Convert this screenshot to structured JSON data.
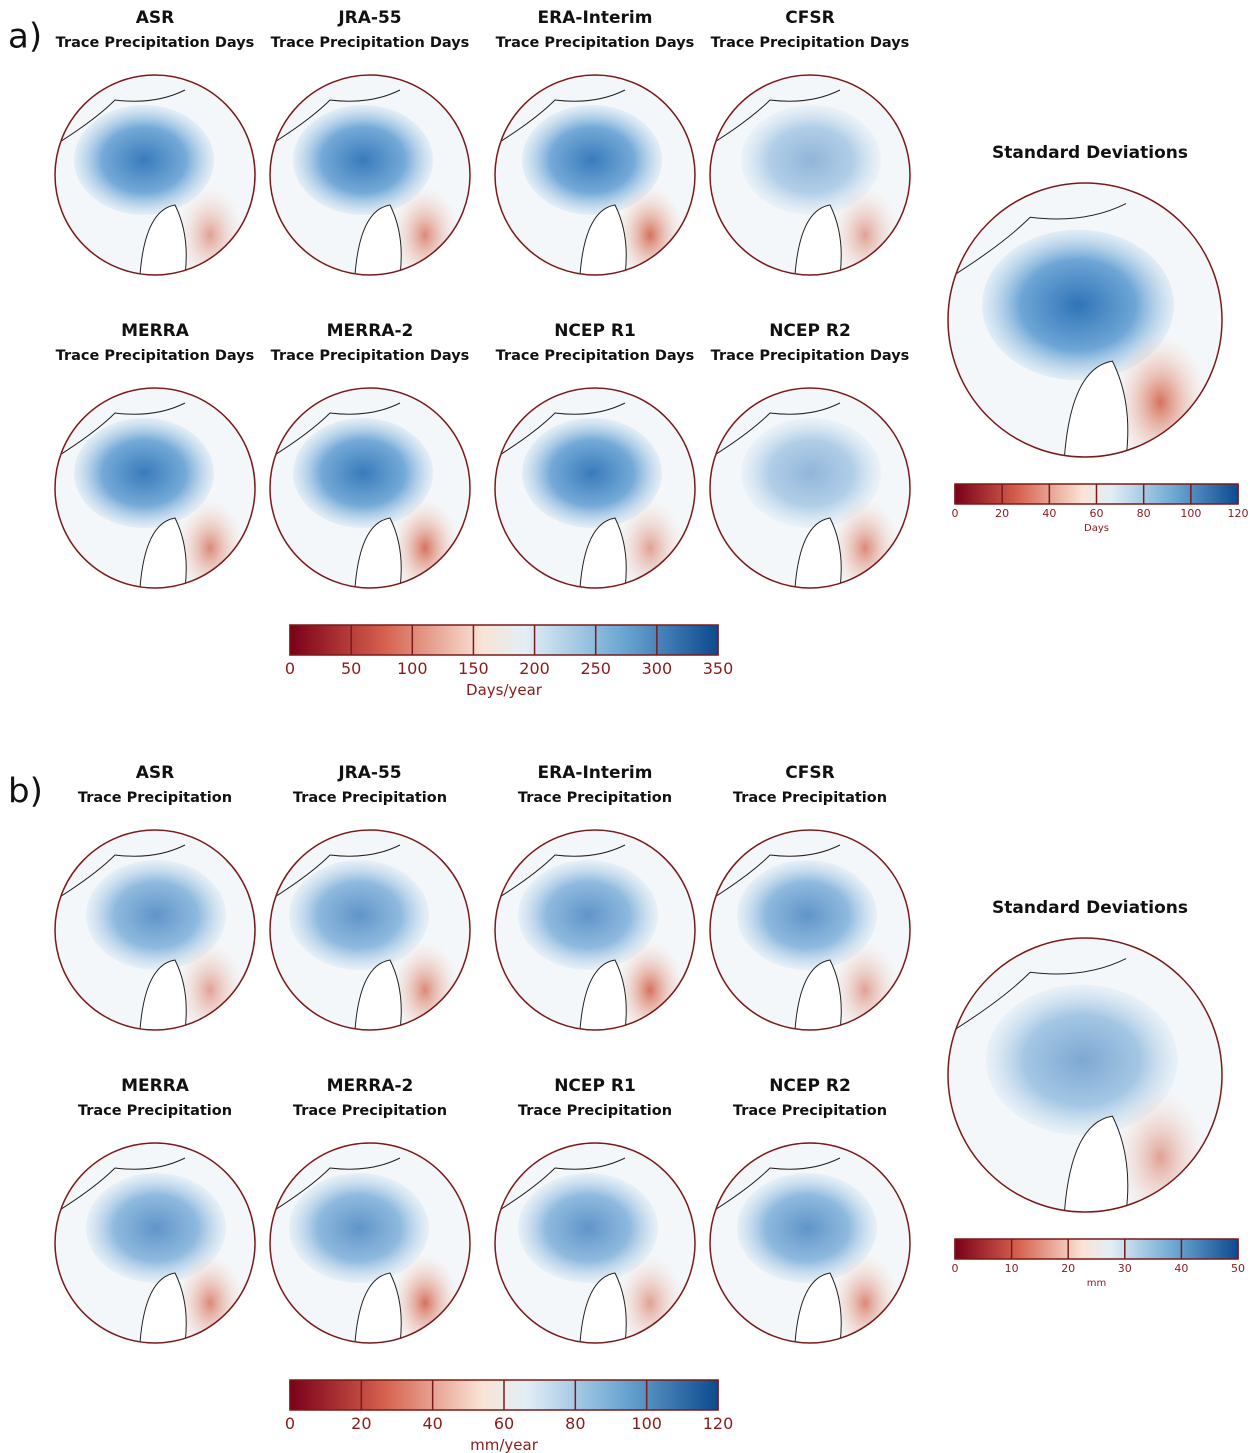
{
  "panels": [
    {
      "label": "a)",
      "maps": [
        {
          "title": "ASR",
          "subtitle": "Trace Precipitation Days"
        },
        {
          "title": "JRA-55",
          "subtitle": "Trace Precipitation Days"
        },
        {
          "title": "ERA-Interim",
          "subtitle": "Trace Precipitation Days"
        },
        {
          "title": "CFSR",
          "subtitle": "Trace Precipitation Days"
        },
        {
          "title": "MERRA",
          "subtitle": "Trace Precipitation Days"
        },
        {
          "title": "MERRA-2",
          "subtitle": "Trace Precipitation Days"
        },
        {
          "title": "NCEP R1",
          "subtitle": "Trace Precipitation Days"
        },
        {
          "title": "NCEP R2",
          "subtitle": "Trace Precipitation Days"
        }
      ],
      "std_title": "Standard Deviations",
      "colorbar": {
        "ticks": [
          0,
          50,
          100,
          150,
          200,
          250,
          300,
          350
        ],
        "label": "Days/year"
      },
      "std_colorbar": {
        "ticks": [
          0,
          20,
          40,
          60,
          80,
          100,
          120
        ],
        "label": "Days"
      }
    },
    {
      "label": "b)",
      "maps": [
        {
          "title": "ASR",
          "subtitle": "Trace Precipitation"
        },
        {
          "title": "JRA-55",
          "subtitle": "Trace Precipitation"
        },
        {
          "title": "ERA-Interim",
          "subtitle": "Trace Precipitation"
        },
        {
          "title": "CFSR",
          "subtitle": "Trace Precipitation"
        },
        {
          "title": "MERRA",
          "subtitle": "Trace Precipitation"
        },
        {
          "title": "MERRA-2",
          "subtitle": "Trace Precipitation"
        },
        {
          "title": "NCEP R1",
          "subtitle": "Trace Precipitation"
        },
        {
          "title": "NCEP R2",
          "subtitle": "Trace Precipitation"
        }
      ],
      "std_title": "Standard Deviations",
      "colorbar": {
        "ticks": [
          0,
          20,
          40,
          60,
          80,
          100,
          120
        ],
        "label": "mm/year"
      },
      "std_colorbar": {
        "ticks": [
          0,
          10,
          20,
          30,
          40,
          50
        ],
        "label": "mm"
      }
    }
  ]
}
